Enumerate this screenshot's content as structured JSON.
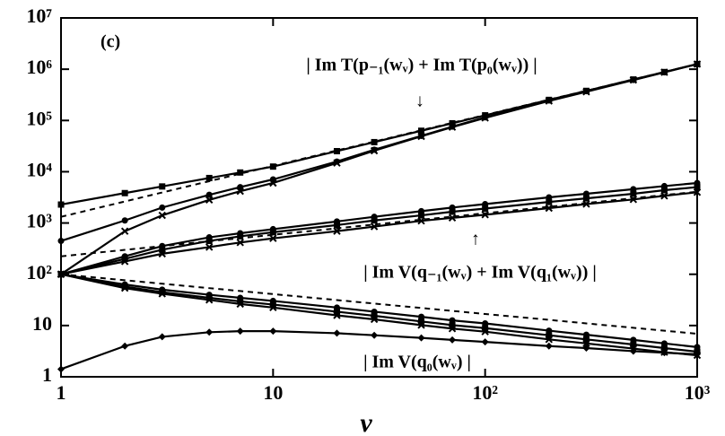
{
  "chart_data": {
    "type": "line",
    "xlabel": "ν",
    "annotations": [
      "(c)",
      "| Im T(p₋₁(wᵥ) + Im T(p₀(wᵥ)) |",
      "↓",
      "↑",
      "| Im V(q₋₁(wᵥ) + Im V(q₁(wᵥ)) |",
      "| Im V(q₀(wᵥ) |"
    ],
    "log_x": true,
    "log_y": true,
    "xlim": [
      1,
      1000
    ],
    "ylim": [
      1,
      10000000
    ],
    "xticks": [
      1,
      10,
      {
        "value": 100,
        "label": "10²"
      },
      {
        "value": 1000,
        "label": "10³"
      }
    ],
    "yticks": [
      1,
      10,
      {
        "value": 100,
        "label": "10²"
      },
      {
        "value": 1000,
        "label": "10³"
      },
      {
        "value": 10000,
        "label": "10⁴"
      },
      {
        "value": 100000,
        "label": "10⁵"
      },
      {
        "value": 1000000,
        "label": "10⁶"
      },
      {
        "value": 10000000,
        "label": "10⁷"
      }
    ],
    "x": [
      1,
      2,
      3,
      5,
      7,
      10,
      20,
      30,
      50,
      70,
      100,
      200,
      300,
      500,
      700,
      1000
    ],
    "series": [
      {
        "color": "#000000",
        "marker": "square",
        "dashed": false,
        "values": [
          2290,
          3830,
          5160,
          7540,
          9660,
          12600,
          25200,
          37800,
          63000,
          88100,
          126000,
          252000,
          378000,
          630000,
          881000,
          1260000
        ]
      },
      {
        "color": "#000000",
        "marker": "circle",
        "dashed": false,
        "values": [
          447,
          1120,
          2000,
          3550,
          5010,
          7080,
          15800,
          26900,
          50100,
          75900,
          115000,
          245000,
          372000,
          617000,
          871000,
          1260000
        ]
      },
      {
        "color": "#000000",
        "marker": "x",
        "dashed": false,
        "values": [
          100,
          692,
          1410,
          2820,
          4170,
          6030,
          14800,
          25700,
          49000,
          74100,
          112000,
          240000,
          363000,
          617000,
          871000,
          1260000
        ]
      },
      {
        "color": "#000000",
        "marker": "none",
        "dashed": true,
        "values": [
          1320,
          2630,
          3940,
          6540,
          9150,
          13000,
          26000,
          38700,
          64400,
          90000,
          128000,
          255000,
          380000,
          633000,
          884000,
          1260000
        ]
      },
      {
        "color": "#000000",
        "marker": "circle",
        "dashed": false,
        "values": [
          100,
          224,
          355,
          525,
          631,
          759,
          1070,
          1320,
          1700,
          2000,
          2340,
          3160,
          3720,
          4570,
          5250,
          6030
        ]
      },
      {
        "color": "#000000",
        "marker": "square",
        "dashed": false,
        "values": [
          100,
          200,
          302,
          447,
          550,
          661,
          912,
          1120,
          1410,
          1660,
          1910,
          2570,
          3020,
          3720,
          4370,
          5010
        ]
      },
      {
        "color": "#000000",
        "marker": "x",
        "dashed": false,
        "values": [
          100,
          178,
          251,
          339,
          417,
          501,
          692,
          851,
          1100,
          1260,
          1450,
          1950,
          2340,
          2880,
          3390,
          3980
        ]
      },
      {
        "color": "#000000",
        "marker": "none",
        "dashed": true,
        "values": [
          224,
          299,
          355,
          441,
          507,
          589,
          787,
          933,
          1160,
          1330,
          1550,
          2070,
          2450,
          3050,
          3510,
          4070
        ]
      },
      {
        "color": "#000000",
        "marker": "circle",
        "dashed": false,
        "values": [
          100,
          63.1,
          50.1,
          39.8,
          34.7,
          30.2,
          22.4,
          18.6,
          14.8,
          12.6,
          11,
          7.94,
          6.61,
          5.25,
          4.47,
          3.8
        ]
      },
      {
        "color": "#000000",
        "marker": "square",
        "dashed": false,
        "values": [
          100,
          57.5,
          44.7,
          34.7,
          29.5,
          25.7,
          18.6,
          15.5,
          12,
          10.2,
          8.91,
          6.46,
          5.37,
          4.27,
          3.63,
          3.09
        ]
      },
      {
        "color": "#000000",
        "marker": "x",
        "dashed": false,
        "values": [
          100,
          53.7,
          41.7,
          31.6,
          26.3,
          22.4,
          15.8,
          13.2,
          10.2,
          8.71,
          7.59,
          5.37,
          4.47,
          3.55,
          3.02,
          2.63
        ]
      },
      {
        "color": "#000000",
        "marker": "none",
        "dashed": true,
        "values": [
          100,
          76.5,
          65.4,
          53.6,
          47.1,
          41,
          31.4,
          26.8,
          22,
          19.3,
          16.8,
          12.9,
          11,
          9.03,
          7.93,
          6.9
        ]
      },
      {
        "color": "#000000",
        "marker": "diamond",
        "dashed": false,
        "values": [
          1.41,
          3.98,
          6.03,
          7.41,
          7.76,
          7.76,
          7.08,
          6.46,
          5.75,
          5.25,
          4.79,
          3.98,
          3.63,
          3.16,
          2.95,
          2.75
        ]
      }
    ]
  }
}
